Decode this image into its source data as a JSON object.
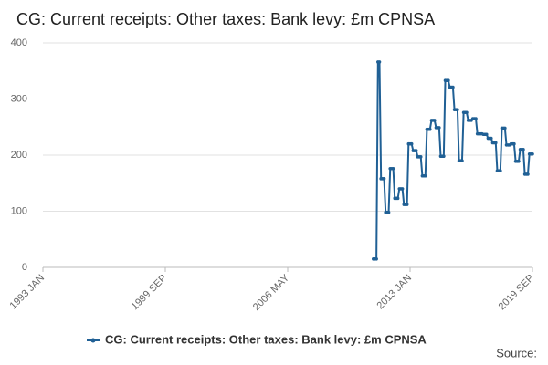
{
  "chart_data": {
    "type": "line",
    "title": "CG: Current receipts: Other taxes: Bank levy: £m CPNSA",
    "source": "Source:",
    "categories": [
      "1993 JAN",
      null,
      null,
      null,
      null,
      null,
      null,
      null,
      null,
      null,
      null,
      null,
      null,
      null,
      null,
      null,
      null,
      null,
      null,
      null,
      null,
      null,
      null,
      null,
      null,
      null,
      null,
      null,
      null,
      null,
      null,
      null,
      null,
      null,
      null,
      null,
      null,
      null,
      null,
      null,
      null,
      null,
      null,
      null,
      null,
      null,
      null,
      null,
      null,
      null,
      null,
      null,
      null,
      null,
      null,
      null,
      null,
      null,
      null,
      null,
      null,
      null,
      null,
      null,
      null,
      null,
      null,
      null,
      null,
      null,
      null,
      null,
      null,
      null,
      null,
      null,
      null,
      null,
      null,
      null,
      "1999 SEP",
      null,
      null,
      null,
      null,
      null,
      null,
      null,
      null,
      null,
      null,
      null,
      null,
      null,
      null,
      null,
      null,
      null,
      null,
      null,
      null,
      null,
      null,
      null,
      null,
      null,
      null,
      null,
      null,
      null,
      null,
      null,
      null,
      null,
      null,
      null,
      null,
      null,
      null,
      null,
      null,
      null,
      null,
      null,
      null,
      null,
      null,
      null,
      null,
      null,
      null,
      null,
      null,
      null,
      null,
      null,
      null,
      null,
      null,
      null,
      null,
      null,
      null,
      null,
      null,
      null,
      null,
      null,
      null,
      null,
      null,
      null,
      null,
      null,
      null,
      null,
      null,
      null,
      null,
      null,
      "2006 MAY",
      null,
      null,
      null,
      null,
      null,
      null,
      null,
      null,
      null,
      null,
      null,
      null,
      null,
      null,
      null,
      null,
      null,
      null,
      null,
      null,
      null,
      null,
      null,
      null,
      null,
      null,
      null,
      null,
      null,
      null,
      null,
      null,
      null,
      null,
      null,
      null,
      null,
      null,
      null,
      null,
      null,
      null,
      null,
      null,
      null,
      null,
      null,
      null,
      null,
      null,
      null,
      null,
      null,
      null,
      null,
      null,
      null,
      null,
      null,
      null,
      null,
      null,
      null,
      null,
      null,
      null,
      null,
      null,
      null,
      null,
      null,
      null,
      null,
      null,
      null,
      null,
      null,
      null,
      null,
      "2013 JAN",
      null,
      null,
      null,
      null,
      null,
      null,
      null,
      null,
      null,
      null,
      null,
      null,
      null,
      null,
      null,
      null,
      null,
      null,
      null,
      null,
      null,
      null,
      null,
      null,
      null,
      null,
      null,
      null,
      null,
      null,
      null,
      null,
      null,
      null,
      null,
      null,
      null,
      null,
      null,
      null,
      null,
      null,
      null,
      null,
      null,
      null,
      null,
      null,
      null,
      null,
      null,
      null,
      null,
      null,
      null,
      null,
      null,
      null,
      null,
      null,
      null,
      null,
      null,
      null,
      null,
      null,
      null,
      null,
      null,
      null,
      null,
      null,
      null,
      null,
      null,
      null,
      null,
      null,
      null,
      "2019 SEP"
    ],
    "series": [
      {
        "name": "CG: Current receipts: Other taxes: Bank levy: £m CPNSA",
        "color": "#206095",
        "values": [
          null,
          null,
          null,
          null,
          null,
          null,
          null,
          null,
          null,
          null,
          null,
          null,
          null,
          null,
          null,
          null,
          null,
          null,
          null,
          null,
          null,
          null,
          null,
          null,
          null,
          null,
          null,
          null,
          null,
          null,
          null,
          null,
          null,
          null,
          null,
          null,
          null,
          null,
          null,
          null,
          null,
          null,
          null,
          null,
          null,
          null,
          null,
          null,
          null,
          null,
          null,
          null,
          null,
          null,
          null,
          null,
          null,
          null,
          null,
          null,
          null,
          null,
          null,
          null,
          null,
          null,
          null,
          null,
          null,
          null,
          null,
          null,
          null,
          null,
          null,
          null,
          null,
          null,
          null,
          null,
          null,
          null,
          null,
          null,
          null,
          null,
          null,
          null,
          null,
          null,
          null,
          null,
          null,
          null,
          null,
          null,
          null,
          null,
          null,
          null,
          null,
          null,
          null,
          null,
          null,
          null,
          null,
          null,
          null,
          null,
          null,
          null,
          null,
          null,
          null,
          null,
          null,
          null,
          null,
          null,
          null,
          null,
          null,
          null,
          null,
          null,
          null,
          null,
          null,
          null,
          null,
          null,
          null,
          null,
          null,
          null,
          null,
          null,
          null,
          null,
          null,
          null,
          null,
          null,
          null,
          null,
          null,
          null,
          null,
          null,
          null,
          null,
          null,
          null,
          null,
          null,
          null,
          null,
          null,
          null,
          null,
          null,
          null,
          null,
          null,
          null,
          null,
          null,
          null,
          null,
          null,
          null,
          null,
          null,
          null,
          null,
          null,
          null,
          null,
          null,
          null,
          null,
          null,
          null,
          null,
          null,
          null,
          null,
          null,
          null,
          null,
          null,
          null,
          null,
          null,
          null,
          null,
          null,
          null,
          null,
          null,
          null,
          null,
          null,
          null,
          null,
          null,
          null,
          null,
          null,
          null,
          null,
          null,
          null,
          null,
          null,
          15,
          15,
          15,
          366,
          366,
          158,
          158,
          158,
          98,
          98,
          98,
          176,
          176,
          176,
          123,
          123,
          123,
          140,
          140,
          140,
          112,
          112,
          112,
          220,
          220,
          220,
          208,
          208,
          208,
          197,
          197,
          197,
          163,
          163,
          163,
          246,
          246,
          246,
          262,
          262,
          262,
          249,
          249,
          249,
          198,
          198,
          198,
          333,
          333,
          333,
          321,
          321,
          321,
          281,
          281,
          281,
          190,
          190,
          190,
          276,
          276,
          276,
          262,
          262,
          262,
          265,
          265,
          265,
          238,
          238,
          238,
          238,
          237,
          237,
          237,
          230,
          230,
          230,
          222,
          222,
          222,
          172,
          172,
          172,
          248,
          248,
          248,
          218,
          218,
          218,
          220,
          220,
          220,
          189,
          189,
          189,
          210,
          210,
          210,
          166,
          166,
          166,
          202,
          202,
          202
        ]
      }
    ],
    "ylim": [
      0,
      400
    ],
    "yticks": [
      0,
      100,
      200,
      300,
      400
    ],
    "grid": true
  }
}
